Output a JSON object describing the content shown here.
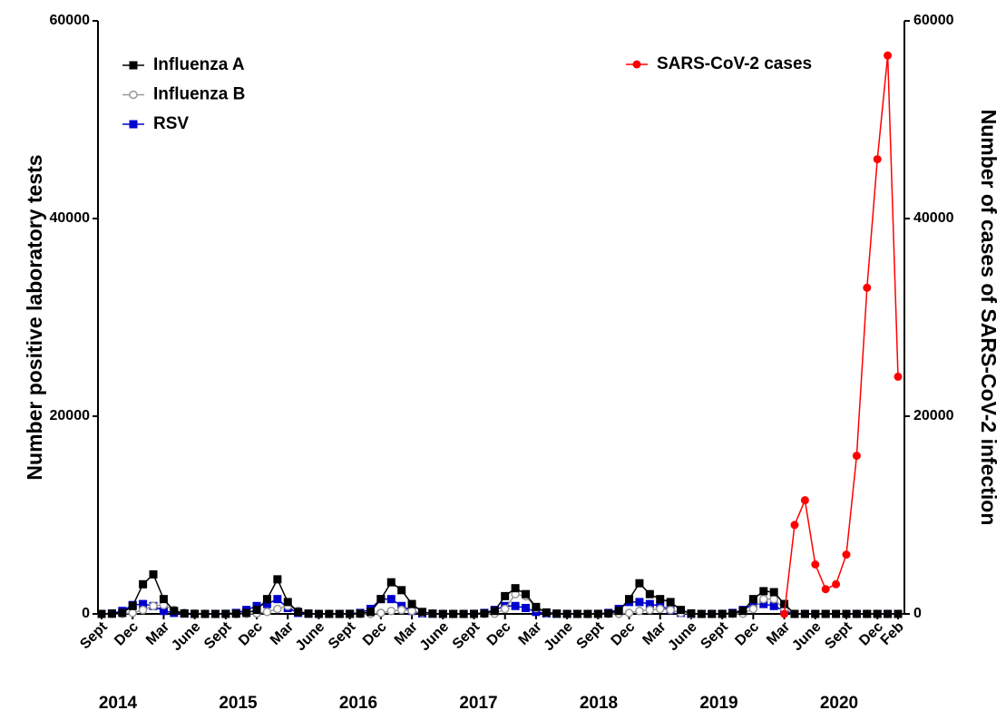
{
  "chart_data": {
    "type": "line",
    "x": [
      "2014-09",
      "2014-10",
      "2014-11",
      "2014-12",
      "2015-01",
      "2015-02",
      "2015-03",
      "2015-04",
      "2015-05",
      "2015-06",
      "2015-07",
      "2015-08",
      "2015-09",
      "2015-10",
      "2015-11",
      "2015-12",
      "2016-01",
      "2016-02",
      "2016-03",
      "2016-04",
      "2016-05",
      "2016-06",
      "2016-07",
      "2016-08",
      "2016-09",
      "2016-10",
      "2016-11",
      "2016-12",
      "2017-01",
      "2017-02",
      "2017-03",
      "2017-04",
      "2017-05",
      "2017-06",
      "2017-07",
      "2017-08",
      "2017-09",
      "2017-10",
      "2017-11",
      "2017-12",
      "2018-01",
      "2018-02",
      "2018-03",
      "2018-04",
      "2018-05",
      "2018-06",
      "2018-07",
      "2018-08",
      "2018-09",
      "2018-10",
      "2018-11",
      "2018-12",
      "2019-01",
      "2019-02",
      "2019-03",
      "2019-04",
      "2019-05",
      "2019-06",
      "2019-07",
      "2019-08",
      "2019-09",
      "2019-10",
      "2019-11",
      "2019-12",
      "2020-01",
      "2020-02",
      "2020-03",
      "2020-04",
      "2020-05",
      "2020-06",
      "2020-07",
      "2020-08",
      "2020-09",
      "2020-10",
      "2020-11",
      "2020-12",
      "2021-01",
      "2021-02"
    ],
    "series": [
      {
        "name": "Influenza A",
        "color": "#000000",
        "marker": "square",
        "axis": "y",
        "values": [
          0,
          20,
          100,
          800,
          3000,
          4000,
          1500,
          300,
          50,
          10,
          0,
          0,
          0,
          20,
          100,
          400,
          1500,
          3500,
          1200,
          200,
          30,
          0,
          0,
          0,
          0,
          30,
          200,
          1500,
          3200,
          2400,
          1000,
          200,
          30,
          0,
          0,
          0,
          0,
          50,
          300,
          1800,
          2600,
          2000,
          700,
          150,
          30,
          0,
          0,
          0,
          0,
          50,
          300,
          1500,
          3100,
          2000,
          1500,
          1200,
          400,
          50,
          0,
          0,
          0,
          50,
          300,
          1500,
          2300,
          2200,
          1000,
          0,
          0,
          0,
          0,
          0,
          0,
          0,
          0,
          0,
          0,
          0
        ]
      },
      {
        "name": "Influenza B",
        "color": "#999999",
        "marker": "open-circle",
        "axis": "y",
        "values": [
          0,
          0,
          10,
          100,
          400,
          800,
          900,
          400,
          100,
          20,
          0,
          0,
          0,
          0,
          10,
          50,
          200,
          500,
          800,
          300,
          50,
          0,
          0,
          0,
          0,
          0,
          10,
          100,
          300,
          400,
          300,
          100,
          20,
          0,
          0,
          0,
          0,
          0,
          20,
          500,
          2000,
          1800,
          600,
          100,
          20,
          0,
          0,
          0,
          0,
          0,
          10,
          100,
          300,
          400,
          500,
          400,
          100,
          10,
          0,
          0,
          0,
          0,
          20,
          500,
          1500,
          1500,
          500,
          0,
          0,
          0,
          0,
          0,
          0,
          0,
          0,
          0,
          0,
          0
        ]
      },
      {
        "name": "RSV",
        "color": "#0000cc",
        "marker": "square",
        "axis": "y",
        "values": [
          0,
          50,
          300,
          900,
          1000,
          800,
          300,
          100,
          30,
          0,
          0,
          0,
          10,
          100,
          400,
          800,
          1000,
          1500,
          600,
          100,
          20,
          0,
          0,
          0,
          10,
          100,
          500,
          1500,
          1500,
          800,
          300,
          50,
          10,
          0,
          0,
          0,
          10,
          100,
          400,
          800,
          800,
          600,
          200,
          50,
          10,
          0,
          0,
          0,
          10,
          100,
          500,
          1200,
          1200,
          1000,
          800,
          400,
          100,
          0,
          0,
          0,
          10,
          100,
          400,
          1000,
          1000,
          800,
          300,
          0,
          0,
          0,
          0,
          0,
          0,
          0,
          0,
          0,
          0,
          0
        ]
      },
      {
        "name": "SARS-CoV-2 cases",
        "color": "#ff0000",
        "marker": "circle",
        "axis": "y2",
        "x": [
          "2020-03",
          "2020-04",
          "2020-05",
          "2020-06",
          "2020-07",
          "2020-08",
          "2020-09",
          "2020-10",
          "2020-11",
          "2020-12",
          "2021-01",
          "2021-02"
        ],
        "values": [
          0,
          9000,
          11500,
          5000,
          2500,
          3000,
          6000,
          16000,
          33000,
          46000,
          56500,
          24000
        ]
      }
    ],
    "xlim": [
      "2014-09",
      "2021-02"
    ],
    "xticks": [
      {
        "value": "2014-09",
        "label": "Sept"
      },
      {
        "value": "2014-12",
        "label": "Dec"
      },
      {
        "value": "2015-03",
        "label": "Mar"
      },
      {
        "value": "2015-06",
        "label": "June"
      },
      {
        "value": "2015-09",
        "label": "Sept"
      },
      {
        "value": "2015-12",
        "label": "Dec"
      },
      {
        "value": "2016-03",
        "label": "Mar"
      },
      {
        "value": "2016-06",
        "label": "June"
      },
      {
        "value": "2016-09",
        "label": "Sept"
      },
      {
        "value": "2016-12",
        "label": "Dec"
      },
      {
        "value": "2017-03",
        "label": "Mar"
      },
      {
        "value": "2017-06",
        "label": "June"
      },
      {
        "value": "2017-09",
        "label": "Sept"
      },
      {
        "value": "2017-12",
        "label": "Dec"
      },
      {
        "value": "2018-03",
        "label": "Mar"
      },
      {
        "value": "2018-06",
        "label": "June"
      },
      {
        "value": "2018-09",
        "label": "Sept"
      },
      {
        "value": "2018-12",
        "label": "Dec"
      },
      {
        "value": "2019-03",
        "label": "Mar"
      },
      {
        "value": "2019-06",
        "label": "June"
      },
      {
        "value": "2019-09",
        "label": "Sept"
      },
      {
        "value": "2019-12",
        "label": "Dec"
      },
      {
        "value": "2020-03",
        "label": "Mar"
      },
      {
        "value": "2020-06",
        "label": "June"
      },
      {
        "value": "2020-09",
        "label": "Sept"
      },
      {
        "value": "2020-12",
        "label": "Dec"
      },
      {
        "value": "2021-02",
        "label": "Feb"
      }
    ],
    "year_labels": [
      "2014",
      "2015",
      "2016",
      "2017",
      "2018",
      "2019",
      "2020"
    ],
    "ylim": [
      0,
      60000
    ],
    "yticks": [
      0,
      20000,
      40000,
      60000
    ],
    "y2lim": [
      0,
      60000
    ],
    "y2ticks": [
      0,
      20000,
      40000,
      60000
    ],
    "ylabel": "Number positive laboratory tests",
    "y2label": "Number of cases of SARS-CoV-2 infection"
  }
}
